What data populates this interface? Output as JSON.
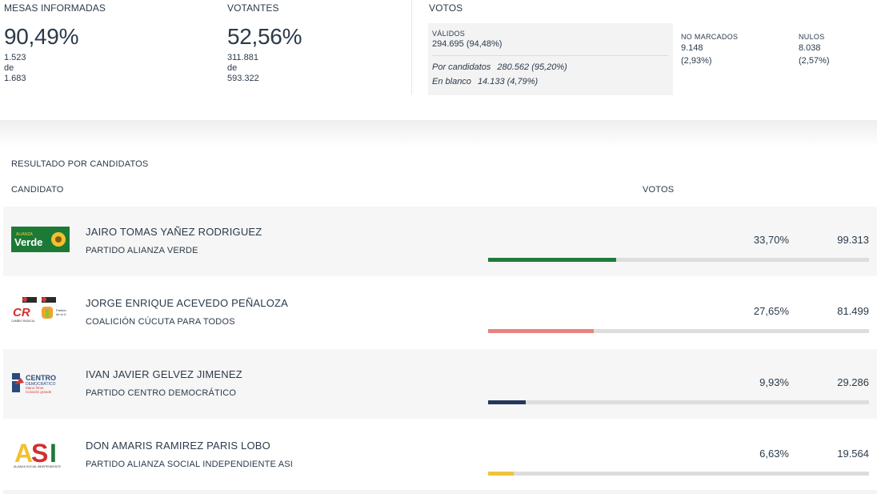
{
  "summary": {
    "mesas": {
      "title": "MESAS INFORMADAS",
      "percent": "90,49%",
      "count": "1.523",
      "de": "de",
      "total": "1.683"
    },
    "votantes": {
      "title": "VOTANTES",
      "percent": "52,56%",
      "count": "311.881",
      "de": "de",
      "total": "593.322"
    },
    "votos": {
      "title": "VOTOS",
      "validos": {
        "label": "VÁLIDOS",
        "value": "294.695 (94,48%)",
        "por_candidatos_label": "Por candidatos",
        "por_candidatos_value": "280.562 (95,20%)",
        "en_blanco_label": "En blanco",
        "en_blanco_value": "14.133 (4,79%)"
      },
      "no_marcados": {
        "label": "NO MARCADOS",
        "value": "9.148",
        "pct": "(2,93%)"
      },
      "nulos": {
        "label": "NULOS",
        "value": "8.038",
        "pct": "(2,57%)"
      }
    }
  },
  "results": {
    "title": "RESULTADO POR CANDIDATOS",
    "col_candidato": "CANDIDATO",
    "col_votos": "VOTOS",
    "candidates": [
      {
        "name": "JAIRO TOMAS YAÑEZ RODRIGUEZ",
        "party": "PARTIDO ALIANZA VERDE",
        "pct": "33,70%",
        "share": 0.337,
        "votes": "99.313",
        "bar_color": "#1e7b3a",
        "logo_text": "Verde",
        "logo_small": "ALIANZA"
      },
      {
        "name": "JORGE ENRIQUE ACEVEDO PEÑALOZA",
        "party": "COALICIÓN CÚCUTA PARA TODOS",
        "pct": "27,65%",
        "share": 0.2765,
        "votes": "81.499",
        "bar_color": "#e8837f",
        "logo_text": "CR",
        "logo_small": "CAMBIO RADICAL"
      },
      {
        "name": "IVAN JAVIER GELVEZ JIMENEZ",
        "party": "PARTIDO CENTRO DEMOCRÁTICO",
        "pct": "9,93%",
        "share": 0.0993,
        "votes": "29.286",
        "bar_color": "#23385a",
        "logo_text": "CENTRO",
        "logo_small": "DEMOCRÁTICO"
      },
      {
        "name": "DON AMARIS RAMIREZ PARIS LOBO",
        "party": "PARTIDO ALIANZA SOCIAL INDEPENDIENTE ASI",
        "pct": "6,63%",
        "share": 0.0663,
        "votes": "19.564",
        "bar_color": "#f0c43a",
        "logo_text": "ASI",
        "logo_small": "ALIANZA SOCIAL INDEPENDIENTE"
      }
    ]
  }
}
